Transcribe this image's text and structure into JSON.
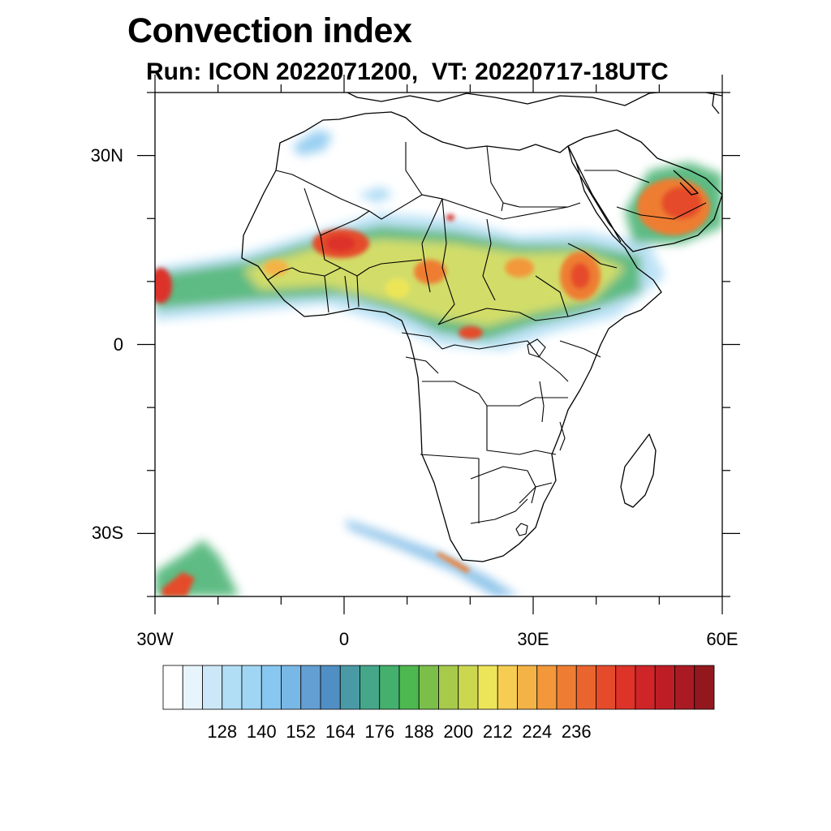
{
  "title": "Convection index",
  "subtitle": "Run: ICON 2022071200,  VT: 20220717-18UTC",
  "chart_data": {
    "type": "map",
    "title": "Convection index",
    "subtitle": "Run: ICON 2022071200,  VT: 20220717-18UTC",
    "field": "Convection index",
    "lon_range": [
      -30,
      60
    ],
    "lat_range": [
      -40,
      40
    ],
    "lon_ticks": [
      {
        "value": -30,
        "label": "30W"
      },
      {
        "value": 0,
        "label": "0"
      },
      {
        "value": 30,
        "label": "30E"
      },
      {
        "value": 60,
        "label": "60E"
      }
    ],
    "lat_ticks": [
      {
        "value": 30,
        "label": "30N"
      },
      {
        "value": 0,
        "label": "0"
      },
      {
        "value": -30,
        "label": "30S"
      }
    ],
    "colorbar": {
      "colors": [
        "#ffffff",
        "#e8f4fc",
        "#cbe7f8",
        "#b2def5",
        "#a0d6f3",
        "#88c7ef",
        "#78b8e6",
        "#639fd3",
        "#4f8fc4",
        "#4a9aa6",
        "#45a78a",
        "#43b06e",
        "#4db84f",
        "#7bbf4a",
        "#a7ca4b",
        "#cbd84f",
        "#ece559",
        "#f6cd52",
        "#f4b346",
        "#f2983b",
        "#ee7d33",
        "#ea642e",
        "#e54b2b",
        "#dd3329",
        "#cf2528",
        "#bf1d26",
        "#aa1a23",
        "#92181e"
      ],
      "tick_labels": [
        "128",
        "140",
        "152",
        "164",
        "176",
        "188",
        "200",
        "212",
        "224",
        "236"
      ]
    }
  }
}
